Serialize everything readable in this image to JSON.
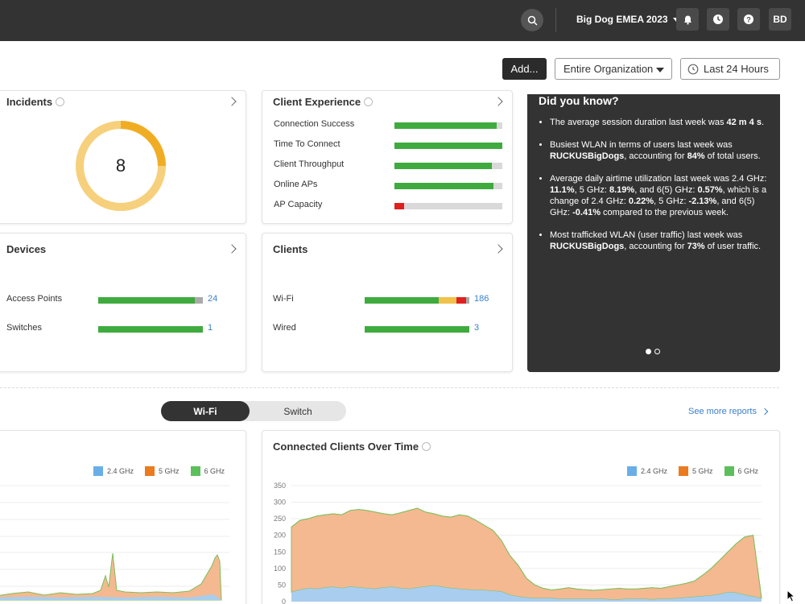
{
  "topbar": {
    "org_name": "Big Dog EMEA 2023",
    "search_icon": "search-icon",
    "avatar": "BD",
    "icons": [
      "bell-icon",
      "clock-icon",
      "help-icon"
    ]
  },
  "toolbar": {
    "add_label": "Add...",
    "scope_label": "Entire Organization",
    "time_label": "Last 24 Hours"
  },
  "incidents": {
    "title": "Incidents",
    "count": "8"
  },
  "client_experience": {
    "title": "Client Experience",
    "metrics": [
      {
        "label": "Connection Success",
        "value": 0.95,
        "color": "#3fab3f"
      },
      {
        "label": "Time To Connect",
        "value": 1.0,
        "color": "#3fab3f"
      },
      {
        "label": "Client Throughput",
        "value": 0.9,
        "color": "#3fab3f"
      },
      {
        "label": "Online APs",
        "value": 0.92,
        "color": "#3fab3f"
      },
      {
        "label": "AP Capacity",
        "value": 0.09,
        "color": "#e0201f"
      }
    ]
  },
  "devices": {
    "title": "Devices",
    "rows": [
      {
        "label": "Access Points",
        "count": "24"
      },
      {
        "label": "Switches",
        "count": "1"
      }
    ]
  },
  "clients": {
    "title": "Clients",
    "rows": [
      {
        "label": "Wi-Fi",
        "count": "186"
      },
      {
        "label": "Wired",
        "count": "3"
      }
    ]
  },
  "did_you_know": {
    "title": "Did you know?",
    "items": [
      "The average session duration last week was <b>42 m 4 s</b>.",
      "Busiest WLAN in terms of users last week was <b>RUCKUSBigDogs</b>, accounting for <b>84%</b> of total users.",
      "Average daily airtime utilization last week was 2.4 GHz: <b>11.1%</b>, 5 GHz: <b>8.19%</b>, and 6(5) GHz: <b>0.57%</b>, which is a change of 2.4 GHz: <b>0.22%</b>, 5 GHz: <b>-2.13%</b>, and 6(5) GHz: <b>-0.41%</b> compared to the previous week.",
      "Most trafficked WLAN (user traffic) last week was <b>RUCKUSBigDogs</b>, accounting for <b>73%</b> of user traffic."
    ]
  },
  "reports": {
    "tabs": [
      "Wi-Fi",
      "Switch"
    ],
    "see_more": "See more reports"
  },
  "legend": [
    "2.4 GHz",
    "5 GHz",
    "6 GHz"
  ],
  "colors": {
    "ghz24": "#6aaee8",
    "ghz5": "#ec7a1f",
    "ghz6": "#5cbf5c"
  },
  "chart_data": [
    {
      "type": "area",
      "title": "Connected Clients Over Time",
      "ylim": [
        0,
        350
      ],
      "yticks": [
        "0",
        "50",
        "100",
        "150",
        "200",
        "250",
        "300",
        "350"
      ],
      "series": [
        {
          "name": "2.4 GHz",
          "values": [
            28,
            35,
            40,
            38,
            42,
            44,
            40,
            45,
            42,
            40,
            38,
            42,
            44,
            40,
            38,
            42,
            45,
            48,
            44,
            40,
            38,
            36,
            35,
            34,
            32,
            30,
            20,
            15,
            12,
            10,
            10,
            10,
            8,
            8,
            8,
            8,
            8,
            8,
            6,
            6,
            8,
            8,
            8,
            6,
            8,
            8,
            10,
            12,
            14,
            16,
            18,
            22,
            28,
            26,
            20,
            15,
            10
          ]
        },
        {
          "name": "5 GHz",
          "values": [
            225,
            245,
            250,
            258,
            262,
            265,
            262,
            275,
            278,
            275,
            270,
            265,
            262,
            268,
            275,
            282,
            270,
            265,
            258,
            255,
            262,
            258,
            245,
            230,
            215,
            185,
            140,
            110,
            70,
            50,
            40,
            35,
            38,
            42,
            38,
            36,
            34,
            36,
            38,
            40,
            38,
            38,
            40,
            42,
            40,
            45,
            50,
            55,
            62,
            80,
            100,
            125,
            150,
            175,
            195,
            200,
            5
          ]
        },
        {
          "name": "6 GHz",
          "values": [
            0,
            0,
            0,
            0,
            0,
            0,
            0,
            0,
            0,
            0,
            0,
            0,
            0,
            0,
            0,
            0,
            0,
            0,
            0,
            0,
            0,
            0,
            0,
            0,
            0,
            0,
            0,
            0,
            0,
            0,
            0,
            0,
            0,
            0,
            0,
            0,
            0,
            0,
            0,
            0,
            0,
            0,
            0,
            0,
            0,
            0,
            0,
            0,
            0,
            0,
            0,
            0,
            0,
            0,
            0,
            0,
            0
          ]
        }
      ]
    }
  ]
}
